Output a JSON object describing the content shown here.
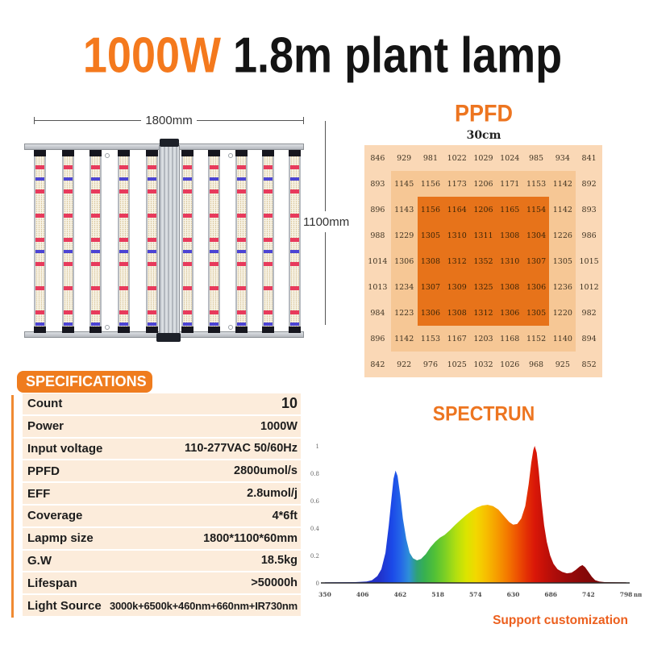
{
  "title": {
    "highlight": "1000W",
    "rest": " 1.8m plant lamp"
  },
  "colors": {
    "accent_orange": "#ed7520",
    "title_orange": "#f4791d",
    "heatmap_light": "#fad8b6",
    "heatmap_mid": "#f6c795",
    "heatmap_dark": "#e7731a"
  },
  "diagram": {
    "width_label": "1800mm",
    "height_label": "1100mm",
    "bar_count": 10,
    "bar_offsets": [
      22,
      56.7,
      91.4,
      126.1,
      160.8,
      205,
      238.3,
      271.6,
      305,
      338.3
    ]
  },
  "ppfd": {
    "heading": "PPFD",
    "distance_label": "30cm",
    "grid": [
      [
        846,
        929,
        981,
        1022,
        1029,
        1024,
        985,
        934,
        841
      ],
      [
        893,
        1145,
        1156,
        1173,
        1206,
        1171,
        1153,
        1142,
        892
      ],
      [
        896,
        1143,
        1156,
        1164,
        1206,
        1165,
        1154,
        1142,
        893
      ],
      [
        988,
        1229,
        1305,
        1310,
        1311,
        1308,
        1304,
        1226,
        986
      ],
      [
        1014,
        1306,
        1308,
        1312,
        1352,
        1310,
        1307,
        1305,
        1015
      ],
      [
        1013,
        1234,
        1307,
        1309,
        1325,
        1308,
        1306,
        1236,
        1012
      ],
      [
        984,
        1223,
        1306,
        1308,
        1312,
        1306,
        1305,
        1220,
        982
      ],
      [
        896,
        1142,
        1153,
        1167,
        1203,
        1168,
        1152,
        1140,
        894
      ],
      [
        842,
        922,
        976,
        1025,
        1032,
        1026,
        968,
        925,
        852
      ]
    ]
  },
  "specs": {
    "heading": "SPECIFICATIONS",
    "rows": [
      {
        "label": "Count",
        "value": "10"
      },
      {
        "label": "Power",
        "value": "1000W"
      },
      {
        "label": "Input voltage",
        "value": "110-277VAC 50/60Hz"
      },
      {
        "label": "PPFD",
        "value": "2800umol/s"
      },
      {
        "label": "EFF",
        "value": "2.8umol/j"
      },
      {
        "label": "Coverage",
        "value": "4*6ft"
      },
      {
        "label": "Lapmp size",
        "value": "1800*1100*60mm"
      },
      {
        "label": "G.W",
        "value": "18.5kg"
      },
      {
        "label": "Lifespan",
        "value": ">50000h"
      },
      {
        "label": "Light Source",
        "value": "3000k+6500k+460nm+660nm+IR730nm"
      }
    ]
  },
  "spectrum": {
    "heading": "SPECTRUN",
    "footer": "Support customization",
    "chart_data": {
      "type": "area",
      "xlabel_unit": "nm",
      "x_ticks": [
        350,
        406,
        462,
        518,
        574,
        630,
        686,
        742,
        798
      ],
      "y_ticks": [
        1,
        0.8,
        0.6,
        0.4,
        0.2,
        0
      ],
      "points": [
        [
          350,
          0.004
        ],
        [
          395,
          0.006
        ],
        [
          412,
          0.01
        ],
        [
          420,
          0.02
        ],
        [
          428,
          0.05
        ],
        [
          434,
          0.1
        ],
        [
          440,
          0.22
        ],
        [
          445,
          0.42
        ],
        [
          449,
          0.62
        ],
        [
          452,
          0.76
        ],
        [
          455,
          0.82
        ],
        [
          458,
          0.78
        ],
        [
          462,
          0.64
        ],
        [
          466,
          0.47
        ],
        [
          471,
          0.32
        ],
        [
          476,
          0.22
        ],
        [
          481,
          0.18
        ],
        [
          487,
          0.165
        ],
        [
          493,
          0.175
        ],
        [
          500,
          0.21
        ],
        [
          507,
          0.26
        ],
        [
          514,
          0.3
        ],
        [
          521,
          0.33
        ],
        [
          528,
          0.35
        ],
        [
          536,
          0.385
        ],
        [
          544,
          0.425
        ],
        [
          552,
          0.46
        ],
        [
          560,
          0.495
        ],
        [
          568,
          0.525
        ],
        [
          576,
          0.55
        ],
        [
          584,
          0.565
        ],
        [
          592,
          0.57
        ],
        [
          600,
          0.56
        ],
        [
          608,
          0.535
        ],
        [
          616,
          0.49
        ],
        [
          624,
          0.445
        ],
        [
          630,
          0.425
        ],
        [
          636,
          0.43
        ],
        [
          642,
          0.47
        ],
        [
          648,
          0.56
        ],
        [
          653,
          0.72
        ],
        [
          657,
          0.88
        ],
        [
          660,
          0.97
        ],
        [
          662,
          1.0
        ],
        [
          665,
          0.95
        ],
        [
          668,
          0.82
        ],
        [
          672,
          0.6
        ],
        [
          676,
          0.42
        ],
        [
          680,
          0.3
        ],
        [
          685,
          0.2
        ],
        [
          690,
          0.14
        ],
        [
          696,
          0.1
        ],
        [
          703,
          0.08
        ],
        [
          710,
          0.07
        ],
        [
          717,
          0.075
        ],
        [
          723,
          0.095
        ],
        [
          729,
          0.12
        ],
        [
          733,
          0.13
        ],
        [
          737,
          0.115
        ],
        [
          742,
          0.08
        ],
        [
          747,
          0.045
        ],
        [
          752,
          0.02
        ],
        [
          758,
          0.01
        ],
        [
          766,
          0.006
        ],
        [
          798,
          0.004
        ]
      ]
    }
  }
}
